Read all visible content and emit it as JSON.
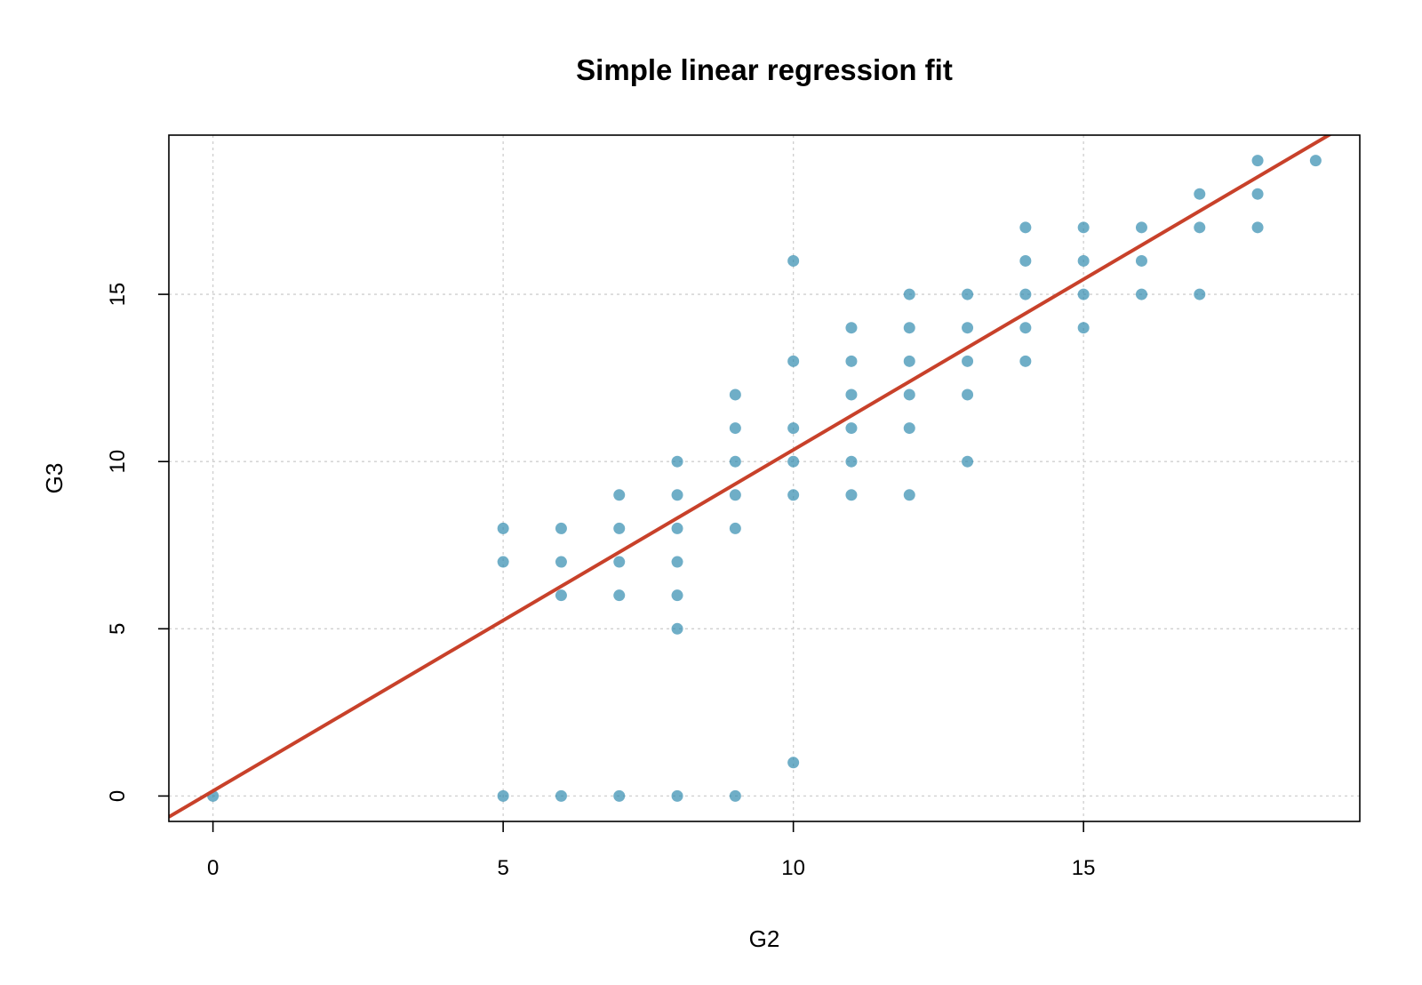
{
  "chart_data": {
    "type": "scatter",
    "title": "Simple linear regression fit",
    "xlabel": "G2",
    "ylabel": "G3",
    "xlim": [
      -0.76,
      19.76
    ],
    "ylim": [
      -0.76,
      19.76
    ],
    "x_ticks": [
      0,
      5,
      10,
      15
    ],
    "y_ticks": [
      0,
      5,
      10,
      15
    ],
    "grid": true,
    "point_color": "#2b88ad",
    "line_color": "#c8412a",
    "points": [
      [
        0,
        0
      ],
      [
        5,
        0
      ],
      [
        5,
        7
      ],
      [
        5,
        8
      ],
      [
        6,
        0
      ],
      [
        6,
        6
      ],
      [
        6,
        7
      ],
      [
        6,
        8
      ],
      [
        7,
        0
      ],
      [
        7,
        6
      ],
      [
        7,
        7
      ],
      [
        7,
        8
      ],
      [
        7,
        9
      ],
      [
        8,
        0
      ],
      [
        8,
        5
      ],
      [
        8,
        6
      ],
      [
        8,
        7
      ],
      [
        8,
        8
      ],
      [
        8,
        9
      ],
      [
        8,
        10
      ],
      [
        9,
        0
      ],
      [
        9,
        8
      ],
      [
        9,
        9
      ],
      [
        9,
        10
      ],
      [
        9,
        11
      ],
      [
        9,
        12
      ],
      [
        10,
        1
      ],
      [
        10,
        9
      ],
      [
        10,
        10
      ],
      [
        10,
        11
      ],
      [
        10,
        13
      ],
      [
        10,
        16
      ],
      [
        11,
        9
      ],
      [
        11,
        10
      ],
      [
        11,
        11
      ],
      [
        11,
        12
      ],
      [
        11,
        13
      ],
      [
        11,
        14
      ],
      [
        12,
        9
      ],
      [
        12,
        11
      ],
      [
        12,
        12
      ],
      [
        12,
        13
      ],
      [
        12,
        14
      ],
      [
        12,
        15
      ],
      [
        13,
        10
      ],
      [
        13,
        12
      ],
      [
        13,
        13
      ],
      [
        13,
        14
      ],
      [
        13,
        15
      ],
      [
        14,
        13
      ],
      [
        14,
        14
      ],
      [
        14,
        15
      ],
      [
        14,
        16
      ],
      [
        14,
        17
      ],
      [
        15,
        14
      ],
      [
        15,
        15
      ],
      [
        15,
        16
      ],
      [
        15,
        17
      ],
      [
        16,
        15
      ],
      [
        16,
        16
      ],
      [
        16,
        17
      ],
      [
        17,
        15
      ],
      [
        17,
        17
      ],
      [
        17,
        18
      ],
      [
        18,
        17
      ],
      [
        18,
        18
      ],
      [
        18,
        19
      ],
      [
        19,
        19
      ]
    ],
    "regression": {
      "intercept": 0.15,
      "slope": 1.02
    }
  }
}
